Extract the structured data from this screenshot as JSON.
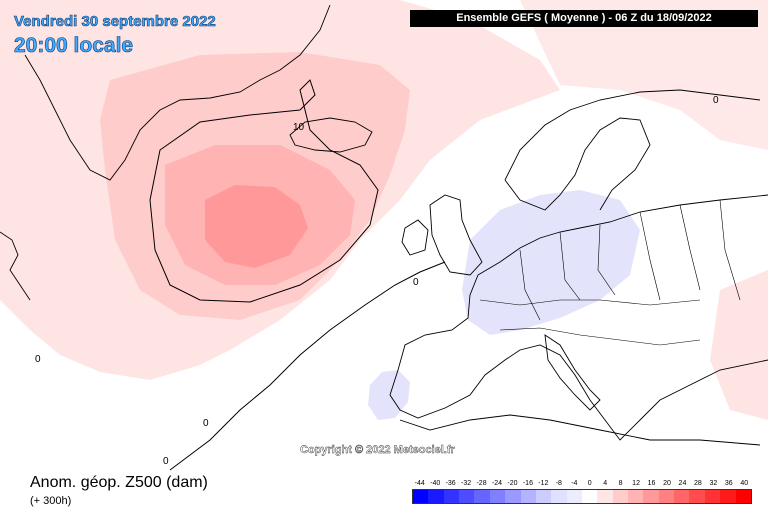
{
  "header": {
    "date": "Vendredi 30 septembre 2022",
    "time": "20:00 locale",
    "model_run": "Ensemble GEFS  ( Moyenne )  -  06 Z du 18/09/2022"
  },
  "map": {
    "copyright": "Copyright © 2022 Meteociel.fr",
    "contour_labels": [
      "10",
      "0",
      "0",
      "0",
      "0",
      "0"
    ]
  },
  "legend": {
    "variable": "Anom. géop. Z500 (dam)",
    "lead_time": "(+ 300h)",
    "scale_values": [
      "-44",
      "-40",
      "-36",
      "-32",
      "-28",
      "-24",
      "-20",
      "-16",
      "-12",
      "-8",
      "-4",
      "0",
      "4",
      "8",
      "12",
      "16",
      "20",
      "24",
      "28",
      "32",
      "36",
      "40"
    ],
    "scale_colors": [
      "#0000ff",
      "#1a1aff",
      "#3333ff",
      "#4d4dff",
      "#6666ff",
      "#8080ff",
      "#9999ff",
      "#b3b3ff",
      "#ccccff",
      "#e0e0ff",
      "#ececff",
      "#ffffff",
      "#ffe6e6",
      "#ffcccc",
      "#ffb3b3",
      "#ff9999",
      "#ff8080",
      "#ff6666",
      "#ff4d4d",
      "#ff3333",
      "#ff1a1a",
      "#ff0000"
    ]
  }
}
